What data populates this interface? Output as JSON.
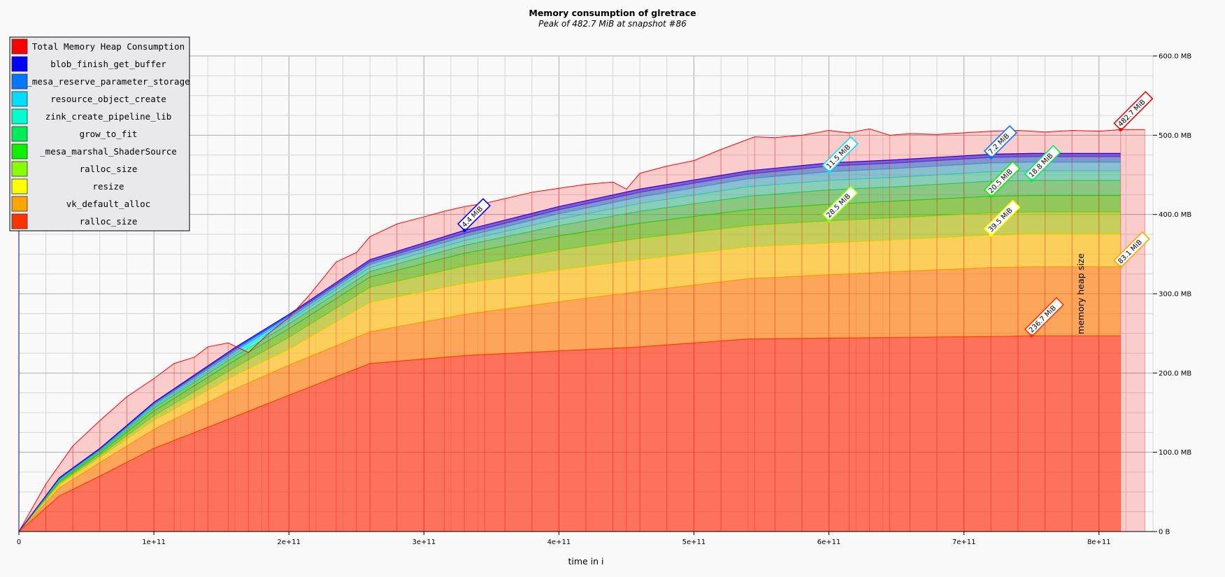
{
  "window": {
    "title": "Memory consumption of glretrace",
    "subtitle": "Peak of 482.7 MiB at snapshot #86"
  },
  "colors": {
    "background": "#f9f9f9",
    "grid_major": "#aaaaaa",
    "grid_minor": "#d6d6d6",
    "total": "#ff0000"
  },
  "chart_data": {
    "type": "area",
    "stacked": true,
    "title": "Memory consumption of glretrace",
    "subtitle": "Peak of 482.7 MiB at snapshot #86",
    "xlabel": "time in i",
    "ylabel": "memory heap size",
    "xlim": [
      0,
      840000000000
    ],
    "ylim": [
      0,
      600
    ],
    "y_unit": "MB",
    "grid": true,
    "legend_position": "top-left",
    "x_ticks": [
      {
        "value": 0,
        "label": "0"
      },
      {
        "value": 100000000000,
        "label": "1e+11"
      },
      {
        "value": 200000000000,
        "label": "2e+11"
      },
      {
        "value": 300000000000,
        "label": "3e+11"
      },
      {
        "value": 400000000000,
        "label": "4e+11"
      },
      {
        "value": 500000000000,
        "label": "5e+11"
      },
      {
        "value": 600000000000,
        "label": "6e+11"
      },
      {
        "value": 700000000000,
        "label": "7e+11"
      },
      {
        "value": 800000000000,
        "label": "8e+11"
      }
    ],
    "y_ticks": [
      {
        "value": 0,
        "label": "0 B"
      },
      {
        "value": 100,
        "label": "100.0 MB"
      },
      {
        "value": 200,
        "label": "200.0 MB"
      },
      {
        "value": 300,
        "label": "300.0 MB"
      },
      {
        "value": 400,
        "label": "400.0 MB"
      },
      {
        "value": 500,
        "label": "500.0 MB"
      },
      {
        "value": 600,
        "label": "600.0 MB"
      }
    ],
    "x": [
      0,
      30000000000,
      60000000000,
      100000000000,
      160000000000,
      200000000000,
      260000000000,
      330000000000,
      400000000000,
      460000000000,
      540000000000,
      600000000000,
      650000000000,
      720000000000,
      750000000000,
      800000000000,
      816000000000
    ],
    "series": [
      {
        "name": "ralloc_size",
        "color": "#ff3300",
        "peak_label": "236.7 MiB",
        "peak_x": 750000000000,
        "values": [
          0,
          45,
          70,
          105,
          145,
          172,
          212,
          222,
          228,
          233,
          243,
          244,
          245,
          246,
          247,
          247,
          247
        ]
      },
      {
        "name": "vk_default_alloc",
        "color": "#ffa500",
        "peak_label": "83.1 MiB",
        "peak_x": 816000000000,
        "values": [
          0,
          10,
          17,
          24,
          35,
          38,
          40,
          52,
          62,
          70,
          76,
          80,
          83,
          87,
          87,
          87,
          87
        ]
      },
      {
        "name": "resize",
        "color": "#ffff00",
        "peak_label": "39.5 MiB",
        "peak_x": 720000000000,
        "values": [
          0,
          4,
          6,
          11,
          17,
          20,
          37,
          39,
          40,
          40,
          40,
          40,
          40,
          41,
          41,
          41,
          41
        ]
      },
      {
        "name": "ralloc_size",
        "color": "#88ff00",
        "peak_label": "28.5 MiB",
        "peak_x": 600000000000,
        "values": [
          0,
          2,
          3,
          6,
          10,
          15,
          19,
          22,
          25,
          27,
          27,
          28,
          28,
          28,
          28,
          28,
          28
        ]
      },
      {
        "name": "_mesa_marshal_ShaderSource",
        "color": "#11ee00",
        "peak_label": "20.5 MiB",
        "peak_x": 720000000000,
        "values": [
          0,
          2,
          3,
          6,
          9,
          11,
          13,
          16,
          18,
          19,
          20,
          21,
          21,
          21,
          21,
          21,
          21
        ]
      },
      {
        "name": "grow_to_fit",
        "color": "#00ee55",
        "peak_label": "18.8 MiB",
        "peak_x": 750000000000,
        "values": [
          0,
          1,
          2,
          4,
          5,
          6,
          7,
          10,
          13,
          15,
          17,
          18,
          18,
          19,
          19,
          19,
          19
        ]
      },
      {
        "name": "zink_create_pipeline_lib",
        "color": "#00ffcc",
        "peak_label": "",
        "peak_x": 0,
        "values": [
          0,
          1,
          1,
          2,
          3,
          4,
          5,
          6,
          8,
          10,
          12,
          12,
          12,
          12,
          12,
          12,
          12
        ]
      },
      {
        "name": "resource_object_create",
        "color": "#00ddff",
        "peak_label": "11.5 MiB",
        "peak_x": 600000000000,
        "values": [
          0,
          1,
          1,
          2,
          3,
          3,
          4,
          5,
          7,
          8,
          10,
          11,
          11,
          11,
          11,
          11,
          11
        ]
      },
      {
        "name": "_mesa_reserve_parameter_storage",
        "color": "#0077ff",
        "peak_label": "7.2 MiB",
        "peak_x": 720000000000,
        "values": [
          0,
          1,
          1,
          2,
          3,
          3,
          3,
          4,
          5,
          6,
          6,
          7,
          7,
          7,
          7,
          7,
          7
        ]
      },
      {
        "name": "blob_finish_get_buffer",
        "color": "#0000ff",
        "peak_label": "4.4 MiB",
        "peak_x": 330000000000,
        "values": [
          0,
          1,
          1,
          1,
          2,
          2,
          3,
          4,
          4,
          4,
          4,
          4,
          4,
          4,
          4,
          4,
          4
        ]
      }
    ],
    "total": {
      "name": "Total Memory Heap Consumption",
      "color": "#ff0000",
      "peak_label": "482.7 MiB",
      "peak_x": 816000000000,
      "x": [
        0,
        20000000000,
        40000000000,
        60000000000,
        80000000000,
        100000000000,
        115000000000,
        130000000000,
        140000000000,
        155000000000,
        170000000000,
        185000000000,
        200000000000,
        215000000000,
        235000000000,
        250000000000,
        260000000000,
        280000000000,
        300000000000,
        315000000000,
        330000000000,
        345000000000,
        360000000000,
        380000000000,
        400000000000,
        420000000000,
        440000000000,
        450000000000,
        460000000000,
        480000000000,
        500000000000,
        520000000000,
        545000000000,
        560000000000,
        580000000000,
        600000000000,
        615000000000,
        630000000000,
        645000000000,
        660000000000,
        680000000000,
        700000000000,
        720000000000,
        740000000000,
        760000000000,
        780000000000,
        800000000000,
        816000000000,
        834000000000
      ],
      "values": [
        0,
        60,
        108,
        140,
        170,
        193,
        212,
        220,
        233,
        238,
        226,
        250,
        270,
        298,
        340,
        352,
        372,
        388,
        397,
        404,
        410,
        414,
        420,
        428,
        433,
        438,
        441,
        432,
        452,
        461,
        468,
        482,
        498,
        497,
        500,
        506,
        503,
        508,
        500,
        502,
        501,
        503,
        505,
        506,
        504,
        506,
        505,
        507,
        507
      ]
    }
  }
}
